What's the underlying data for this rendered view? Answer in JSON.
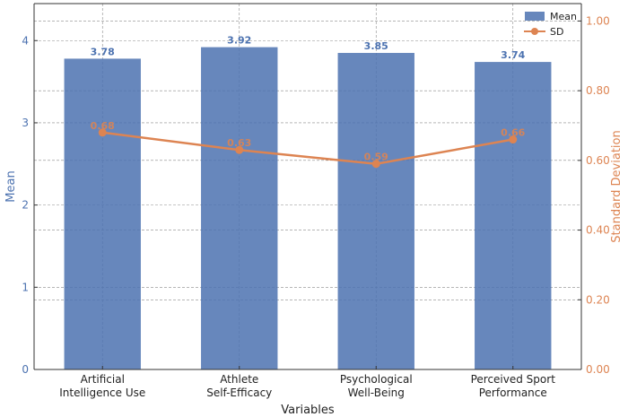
{
  "chart_data": {
    "type": "bar",
    "categories": [
      [
        "Artificial",
        "Intelligence Use"
      ],
      [
        "Athlete",
        "Self-Efficacy"
      ],
      [
        "Psychological",
        "Well-Being"
      ],
      [
        "Perceived Sport",
        "Performance"
      ]
    ],
    "series": [
      {
        "name": "Mean",
        "type": "bar",
        "axis": "left",
        "values": [
          3.78,
          3.92,
          3.85,
          3.74
        ],
        "labels": [
          "3.78",
          "3.92",
          "3.85",
          "3.74"
        ],
        "color": "#4c72b0"
      },
      {
        "name": "SD",
        "type": "line",
        "axis": "right",
        "values": [
          0.68,
          0.63,
          0.59,
          0.66
        ],
        "labels": [
          "0.68",
          "0.63",
          "0.59",
          "0.66"
        ],
        "color": "#dd8452"
      }
    ],
    "xlabel": "Variables",
    "ylabel": "Mean",
    "ylabel_right": "Standard Deviation",
    "ylim": [
      0,
      4.45
    ],
    "ylim_right": [
      0,
      1.05
    ],
    "yticks": [
      0,
      1,
      2,
      3,
      4
    ],
    "yticks_right": [
      "0.00",
      "0.20",
      "0.40",
      "0.60",
      "0.80",
      "1.00"
    ],
    "grid": true,
    "legend": "top-right"
  }
}
